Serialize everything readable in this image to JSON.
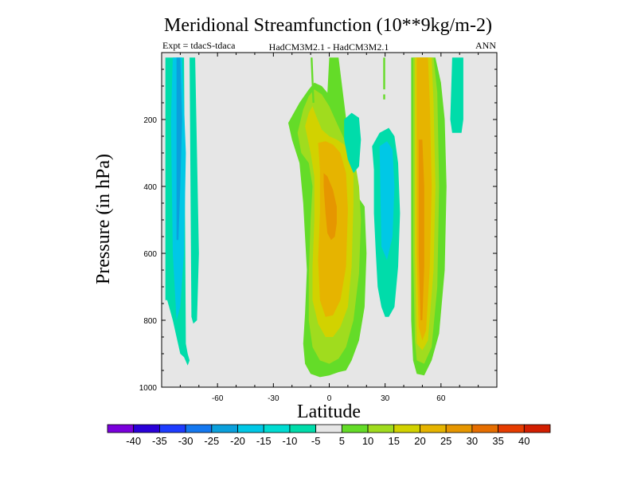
{
  "chart_data": {
    "type": "contour",
    "title": "Meridional Streamfunction (10**9kg/m-2)",
    "subtitle_left": "Expt = tdacS-tdaca",
    "subtitle_center": "HadCM3M2.1 - HadCM3M2.1",
    "subtitle_right": "ANN",
    "xlabel": "Latitude",
    "ylabel": "Pressure (in hPa)",
    "xlim": [
      -90,
      90
    ],
    "ylim": [
      1000,
      0
    ],
    "x_ticks": [
      -60,
      -30,
      0,
      30,
      60
    ],
    "y_ticks": [
      200,
      400,
      600,
      800,
      1000
    ],
    "background_color": "#e6e6e6",
    "levels": [
      -40,
      -35,
      -30,
      -25,
      -20,
      -15,
      -10,
      -5,
      5,
      10,
      15,
      20,
      25,
      30,
      35,
      40
    ],
    "level_colors": [
      "#7a00dc",
      "#2a00d8",
      "#1e3cff",
      "#1478f0",
      "#0aa0dc",
      "#00c8e6",
      "#00dcd2",
      "#00dcaa",
      "#e6e6e6",
      "#64dc28",
      "#a0dc1e",
      "#d2d200",
      "#e6b400",
      "#e69600",
      "#e66e00",
      "#e63c00",
      "#d21e00"
    ],
    "regions": [
      {
        "name": "sh-cell-outer",
        "value": -8,
        "color": "#00dcaa",
        "lat": [
          -88,
          -85,
          -82,
          -80,
          -78,
          -77,
          -76,
          -75,
          -76,
          -78,
          -80,
          -82,
          -84,
          -86,
          -87,
          -88
        ],
        "p": [
          15,
          15,
          15,
          15,
          15,
          870,
          900,
          920,
          935,
          910,
          900,
          850,
          800,
          760,
          740,
          740
        ]
      },
      {
        "name": "sh-cell-mid",
        "value": -14,
        "color": "#00c8e6",
        "lat": [
          -84,
          -79,
          -77,
          -78,
          -80,
          -82,
          -84,
          -85
        ],
        "p": [
          15,
          15,
          300,
          600,
          760,
          800,
          600,
          200
        ]
      },
      {
        "name": "sh-cell-core",
        "value": -18,
        "color": "#0aa0dc",
        "lat": [
          -82,
          -80,
          -79,
          -80,
          -81,
          -82
        ],
        "p": [
          15,
          15,
          200,
          400,
          560,
          560
        ]
      },
      {
        "name": "sh-strip",
        "value": -8,
        "color": "#00dcaa",
        "lat": [
          -75,
          -72,
          -71,
          -70,
          -71,
          -73,
          -74
        ],
        "p": [
          15,
          15,
          300,
          600,
          800,
          810,
          790
        ]
      },
      {
        "name": "eq-outer",
        "value": 7,
        "color": "#64dc28",
        "lat": [
          -22,
          -16,
          -11,
          -8,
          -4,
          -1,
          0,
          5,
          14,
          19,
          20,
          19,
          16,
          12,
          9,
          5,
          0,
          -5,
          -10,
          -13,
          -14,
          -13,
          -12,
          -14,
          -16,
          -20,
          -22
        ],
        "p": [
          210,
          150,
          110,
          90,
          100,
          120,
          15,
          15,
          420,
          460,
          600,
          760,
          860,
          920,
          950,
          955,
          965,
          970,
          960,
          930,
          870,
          780,
          650,
          450,
          330,
          260,
          210
        ]
      },
      {
        "name": "eq-light",
        "value": 12,
        "color": "#a0dc1e",
        "lat": [
          -17,
          -14,
          -11,
          -8,
          -4,
          0,
          4,
          9,
          14,
          16,
          17,
          16,
          13,
          9,
          5,
          0,
          -5,
          -9,
          -11,
          -11,
          -10,
          -9,
          -11,
          -15,
          -17
        ],
        "p": [
          240,
          170,
          130,
          110,
          125,
          160,
          210,
          270,
          330,
          400,
          500,
          660,
          800,
          880,
          915,
          930,
          920,
          880,
          800,
          660,
          500,
          400,
          330,
          300,
          240
        ]
      },
      {
        "name": "eq-yellow",
        "value": 18,
        "color": "#d2d200",
        "lat": [
          -13,
          -11,
          -9,
          -7,
          -4,
          0,
          4,
          8,
          11,
          13,
          13,
          12,
          10,
          6,
          2,
          -2,
          -6,
          -9,
          -9,
          -8,
          -8,
          -10,
          -13
        ],
        "p": [
          220,
          180,
          160,
          190,
          230,
          250,
          260,
          275,
          300,
          340,
          450,
          640,
          760,
          820,
          850,
          850,
          810,
          740,
          640,
          500,
          370,
          300,
          220
        ]
      },
      {
        "name": "eq-gold",
        "value": 22,
        "color": "#e6b400",
        "lat": [
          -6,
          -2,
          2,
          6,
          9,
          10,
          9,
          6,
          2,
          -2,
          -5,
          -6,
          -5,
          -5,
          -6
        ],
        "p": [
          270,
          265,
          275,
          300,
          360,
          470,
          640,
          740,
          785,
          790,
          740,
          620,
          480,
          350,
          270
        ]
      },
      {
        "name": "eq-orange",
        "value": 28,
        "color": "#e69600",
        "lat": [
          -3,
          -1,
          2,
          4,
          4,
          3,
          1,
          -1,
          -2,
          -3
        ],
        "p": [
          360,
          370,
          410,
          460,
          510,
          550,
          560,
          540,
          480,
          400
        ]
      },
      {
        "name": "nh-blob-1",
        "value": -8,
        "color": "#00dcaa",
        "lat": [
          8,
          12,
          16,
          17,
          16,
          13,
          10,
          8
        ],
        "p": [
          200,
          180,
          195,
          260,
          340,
          360,
          320,
          260
        ]
      },
      {
        "name": "nh-blob-2",
        "value": -8,
        "color": "#00dcaa",
        "lat": [
          23,
          27,
          32,
          35,
          37,
          38,
          37,
          35,
          32,
          30,
          28,
          26,
          25,
          24,
          24
        ],
        "p": [
          280,
          240,
          225,
          250,
          330,
          480,
          640,
          760,
          790,
          790,
          760,
          700,
          600,
          480,
          350
        ]
      },
      {
        "name": "nh-blob-2-core",
        "value": -14,
        "color": "#00c8e6",
        "lat": [
          27,
          31,
          34,
          35,
          34,
          31,
          28
        ],
        "p": [
          280,
          265,
          290,
          400,
          550,
          620,
          580
        ]
      },
      {
        "name": "nh-outer",
        "value": 7,
        "color": "#64dc28",
        "lat": [
          44,
          49,
          57,
          60,
          62,
          63,
          62,
          59,
          55,
          51,
          47,
          45,
          44
        ],
        "p": [
          15,
          15,
          15,
          90,
          200,
          400,
          650,
          840,
          920,
          965,
          960,
          920,
          800
        ]
      },
      {
        "name": "nh-light",
        "value": 12,
        "color": "#a0dc1e",
        "lat": [
          45,
          49,
          56,
          58,
          59,
          58,
          55,
          51,
          47,
          46,
          45
        ],
        "p": [
          15,
          15,
          15,
          120,
          400,
          700,
          880,
          930,
          920,
          860,
          600
        ]
      },
      {
        "name": "nh-yellow",
        "value": 18,
        "color": "#d2d200",
        "lat": [
          46,
          49,
          55,
          56,
          57,
          56,
          53,
          50,
          47,
          46
        ],
        "p": [
          15,
          15,
          15,
          150,
          400,
          650,
          860,
          890,
          870,
          600
        ]
      },
      {
        "name": "nh-gold",
        "value": 22,
        "color": "#e6b400",
        "lat": [
          47,
          49,
          53,
          54,
          55,
          54,
          52,
          50,
          48,
          47
        ],
        "p": [
          15,
          15,
          15,
          150,
          400,
          640,
          830,
          860,
          820,
          600
        ]
      },
      {
        "name": "nh-orange",
        "value": 28,
        "color": "#e69600",
        "lat": [
          48,
          50,
          51,
          51,
          50,
          49,
          48
        ],
        "p": [
          260,
          260,
          400,
          640,
          800,
          800,
          600
        ]
      },
      {
        "name": "nh-far",
        "value": -8,
        "color": "#00dcaa",
        "lat": [
          66,
          72,
          72,
          71,
          66,
          65
        ],
        "p": [
          15,
          15,
          200,
          240,
          240,
          200
        ]
      },
      {
        "name": "top-sliver-1",
        "value": 7,
        "color": "#64dc28",
        "lat": [
          -10,
          -9,
          -8,
          -9
        ],
        "p": [
          15,
          15,
          150,
          150
        ]
      },
      {
        "name": "top-sliver-2",
        "value": 7,
        "color": "#64dc28",
        "lat": [
          29,
          30,
          30,
          29
        ],
        "p": [
          15,
          15,
          110,
          110
        ]
      },
      {
        "name": "top-sliver-3",
        "value": 7,
        "color": "#64dc28",
        "lat": [
          29,
          30,
          30,
          29
        ],
        "p": [
          125,
          125,
          140,
          140
        ]
      }
    ]
  }
}
